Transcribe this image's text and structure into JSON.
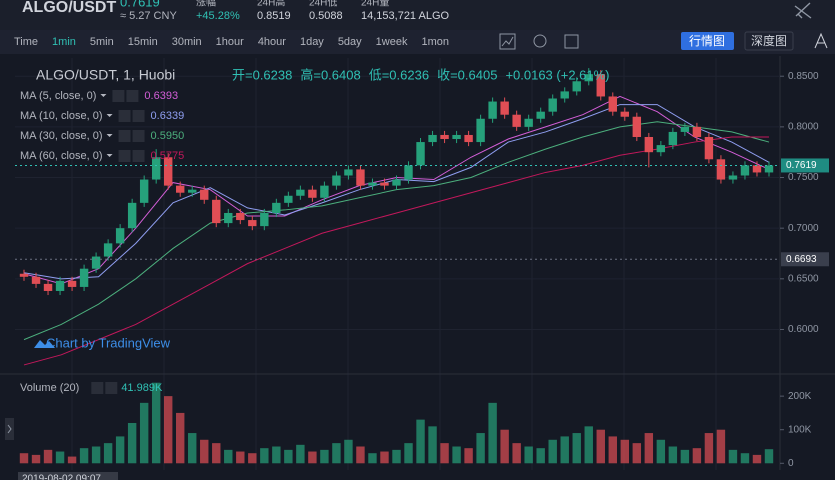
{
  "header": {
    "pair": "ALGO/USDT",
    "price": "0.7619",
    "cny": "≈ 5.27 CNY",
    "change_label": "涨幅",
    "change": "+45.28%",
    "high_label": "24H高",
    "high": "0.8519",
    "low_label": "24H低",
    "low": "0.5088",
    "volume_label": "24H量",
    "volume": "14,153,721 ALGO"
  },
  "toolbar": {
    "intervals": [
      "Time",
      "1min",
      "5min",
      "15min",
      "30min",
      "1hour",
      "4hour",
      "1day",
      "5day",
      "1week",
      "1mon"
    ],
    "selected": "1min",
    "views": [
      "行情图",
      "深度图"
    ]
  },
  "chart_data": {
    "type": "candlestick",
    "title": "ALGO/USDT, 1, Huobi",
    "ohlc_legend": [
      "开=0.6238",
      "高=0.6408",
      "低=0.6236",
      "收=0.6405"
    ],
    "change_legend": "+0.0163 (+2.61%)",
    "watermark": "Chart by TradingView",
    "time_label": "2019-08-02  09:07",
    "up_color": "#26a17b",
    "down_color": "#e04e55",
    "ylim": [
      0.56,
      0.866
    ],
    "yticks": [
      {
        "value": 0.6,
        "label": "0.6000"
      },
      {
        "value": 0.65,
        "label": "0.6500"
      },
      {
        "value": 0.7,
        "label": "0.7000"
      },
      {
        "value": 0.75,
        "label": "0.7500"
      },
      {
        "value": 0.8,
        "label": "0.8000"
      },
      {
        "value": 0.85,
        "label": "0.8500"
      }
    ],
    "grid": true,
    "last_price": 0.7619,
    "marker_price": 0.6693,
    "open": [
      0.655,
      0.652,
      0.645,
      0.638,
      0.648,
      0.642,
      0.66,
      0.672,
      0.685,
      0.7,
      0.725,
      0.748,
      0.77,
      0.742,
      0.735,
      0.738,
      0.728,
      0.705,
      0.715,
      0.708,
      0.702,
      0.715,
      0.725,
      0.732,
      0.738,
      0.73,
      0.742,
      0.752,
      0.758,
      0.742,
      0.745,
      0.742,
      0.748,
      0.762,
      0.785,
      0.792,
      0.788,
      0.792,
      0.785,
      0.808,
      0.825,
      0.812,
      0.8,
      0.808,
      0.815,
      0.828,
      0.835,
      0.845,
      0.852,
      0.83,
      0.815,
      0.81,
      0.79,
      0.775,
      0.782,
      0.795,
      0.8,
      0.79,
      0.768,
      0.748,
      0.752,
      0.762,
      0.755
    ],
    "high": [
      0.659,
      0.656,
      0.649,
      0.652,
      0.652,
      0.664,
      0.676,
      0.689,
      0.704,
      0.729,
      0.752,
      0.778,
      0.774,
      0.746,
      0.742,
      0.742,
      0.732,
      0.719,
      0.719,
      0.712,
      0.719,
      0.729,
      0.736,
      0.742,
      0.742,
      0.746,
      0.756,
      0.762,
      0.762,
      0.749,
      0.749,
      0.752,
      0.766,
      0.789,
      0.796,
      0.796,
      0.796,
      0.796,
      0.812,
      0.829,
      0.829,
      0.816,
      0.812,
      0.819,
      0.832,
      0.839,
      0.849,
      0.858,
      0.856,
      0.834,
      0.819,
      0.814,
      0.794,
      0.786,
      0.799,
      0.804,
      0.804,
      0.794,
      0.772,
      0.756,
      0.766,
      0.766,
      0.7659
    ],
    "low": [
      0.648,
      0.641,
      0.634,
      0.634,
      0.638,
      0.638,
      0.656,
      0.668,
      0.681,
      0.696,
      0.721,
      0.744,
      0.738,
      0.731,
      0.731,
      0.724,
      0.701,
      0.701,
      0.704,
      0.698,
      0.698,
      0.711,
      0.721,
      0.728,
      0.726,
      0.726,
      0.738,
      0.748,
      0.738,
      0.738,
      0.738,
      0.738,
      0.744,
      0.758,
      0.781,
      0.784,
      0.784,
      0.781,
      0.781,
      0.804,
      0.808,
      0.796,
      0.796,
      0.804,
      0.811,
      0.824,
      0.831,
      0.841,
      0.826,
      0.811,
      0.806,
      0.786,
      0.76,
      0.771,
      0.778,
      0.791,
      0.786,
      0.764,
      0.744,
      0.744,
      0.748,
      0.751,
      0.751
    ],
    "close": [
      0.652,
      0.645,
      0.638,
      0.648,
      0.642,
      0.66,
      0.672,
      0.685,
      0.7,
      0.725,
      0.748,
      0.77,
      0.742,
      0.735,
      0.738,
      0.728,
      0.705,
      0.715,
      0.708,
      0.702,
      0.715,
      0.725,
      0.732,
      0.738,
      0.73,
      0.742,
      0.752,
      0.758,
      0.742,
      0.745,
      0.742,
      0.748,
      0.762,
      0.785,
      0.792,
      0.788,
      0.792,
      0.785,
      0.808,
      0.825,
      0.812,
      0.8,
      0.808,
      0.815,
      0.828,
      0.835,
      0.845,
      0.852,
      0.83,
      0.815,
      0.81,
      0.79,
      0.775,
      0.782,
      0.795,
      0.8,
      0.79,
      0.768,
      0.748,
      0.752,
      0.762,
      0.755,
      0.7619
    ],
    "series": [
      {
        "name": "MA (5, close, 0)",
        "last": "0.6393",
        "color": "#d35ed7",
        "values": [
          0.655,
          0.645,
          0.66,
          0.7,
          0.745,
          0.738,
          0.712,
          0.712,
          0.728,
          0.742,
          0.75,
          0.748,
          0.77,
          0.788,
          0.8,
          0.812,
          0.83,
          0.815,
          0.79,
          0.775,
          0.758
        ]
      },
      {
        "name": "MA (10, close, 0)",
        "last": "0.6339",
        "color": "#8f9ef0",
        "values": [
          0.656,
          0.65,
          0.652,
          0.685,
          0.725,
          0.74,
          0.72,
          0.713,
          0.725,
          0.738,
          0.748,
          0.746,
          0.76,
          0.785,
          0.795,
          0.808,
          0.822,
          0.822,
          0.8,
          0.785,
          0.765
        ]
      },
      {
        "name": "MA (30, close, 0)",
        "last": "0.5950",
        "color": "#4caf7d",
        "values": [
          0.59,
          0.605,
          0.625,
          0.65,
          0.68,
          0.705,
          0.715,
          0.718,
          0.722,
          0.73,
          0.738,
          0.742,
          0.75,
          0.765,
          0.778,
          0.79,
          0.8,
          0.805,
          0.8,
          0.795,
          0.785
        ]
      },
      {
        "name": "MA (60, close, 0)",
        "last": "0.5775",
        "color": "#c2185b",
        "values": [
          0.565,
          0.575,
          0.59,
          0.605,
          0.625,
          0.645,
          0.665,
          0.68,
          0.695,
          0.705,
          0.715,
          0.725,
          0.735,
          0.745,
          0.755,
          0.762,
          0.772,
          0.778,
          0.785,
          0.79,
          0.79
        ]
      }
    ],
    "volume": {
      "name": "Volume (20)",
      "last_label": "41.989K",
      "ylim": [
        -20000,
        254000
      ],
      "yticks": [
        0,
        {
          "value": 100000,
          "label": "100K"
        },
        {
          "value": 200000,
          "label": "200K"
        }
      ],
      "values": [
        30000,
        25000,
        40000,
        35000,
        20000,
        45000,
        50000,
        60000,
        80000,
        120000,
        180000,
        240000,
        200000,
        150000,
        90000,
        70000,
        60000,
        40000,
        35000,
        30000,
        45000,
        50000,
        40000,
        55000,
        35000,
        40000,
        60000,
        70000,
        50000,
        30000,
        35000,
        40000,
        60000,
        130000,
        110000,
        60000,
        50000,
        45000,
        90000,
        180000,
        100000,
        60000,
        50000,
        45000,
        70000,
        80000,
        90000,
        110000,
        100000,
        80000,
        70000,
        60000,
        90000,
        70000,
        50000,
        40000,
        45000,
        90000,
        100000,
        40000,
        30000,
        25000,
        41989
      ]
    }
  }
}
